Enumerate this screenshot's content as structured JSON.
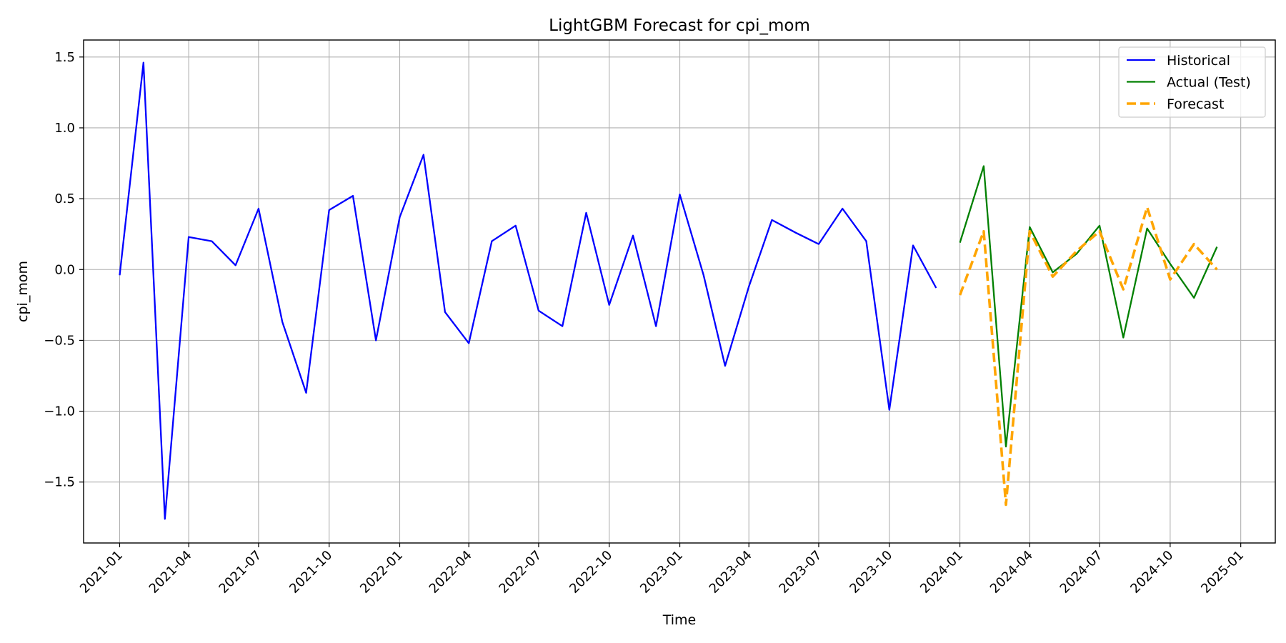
{
  "chart_data": {
    "type": "line",
    "title": "LightGBM Forecast for cpi_mom",
    "xlabel": "Time",
    "ylabel": "cpi_mom",
    "grid": true,
    "legend_position": "top-right",
    "xlim": [
      "2020-11-15",
      "2025-02-15"
    ],
    "ylim": [
      -1.93,
      1.62
    ],
    "x_ticks": [
      "2021-01",
      "2021-04",
      "2021-07",
      "2021-10",
      "2022-01",
      "2022-04",
      "2022-07",
      "2022-10",
      "2023-01",
      "2023-04",
      "2023-07",
      "2023-10",
      "2024-01",
      "2024-04",
      "2024-07",
      "2024-10",
      "2025-01"
    ],
    "y_ticks": [
      1.5,
      1.0,
      0.5,
      0.0,
      -0.5,
      -1.0,
      -1.5
    ],
    "y_tick_labels": [
      "1.5",
      "1.0",
      "0.5",
      "0.0",
      "−0.5",
      "−1.0",
      "−1.5"
    ],
    "series": [
      {
        "name": "Historical",
        "color": "#0000ff",
        "style": "solid",
        "x": [
          "2021-01",
          "2021-02",
          "2021-03",
          "2021-04",
          "2021-05",
          "2021-06",
          "2021-07",
          "2021-08",
          "2021-09",
          "2021-10",
          "2021-11",
          "2021-12",
          "2022-01",
          "2022-02",
          "2022-03",
          "2022-04",
          "2022-05",
          "2022-06",
          "2022-07",
          "2022-08",
          "2022-09",
          "2022-10",
          "2022-11",
          "2022-12",
          "2023-01",
          "2023-02",
          "2023-03",
          "2023-04",
          "2023-05",
          "2023-06",
          "2023-07",
          "2023-08",
          "2023-09",
          "2023-10",
          "2023-11",
          "2023-12"
        ],
        "values": [
          -0.04,
          1.46,
          -1.76,
          0.23,
          0.2,
          0.03,
          0.43,
          -0.37,
          -0.87,
          0.42,
          0.52,
          -0.5,
          0.37,
          0.81,
          -0.3,
          -0.52,
          0.2,
          0.31,
          -0.29,
          -0.4,
          0.4,
          -0.25,
          0.24,
          -0.4,
          0.53,
          -0.04,
          -0.68,
          -0.12,
          0.35,
          0.26,
          0.18,
          0.43,
          0.2,
          -0.99,
          0.17,
          -0.13
        ]
      },
      {
        "name": "Actual (Test)",
        "color": "#008000",
        "style": "solid",
        "x": [
          "2024-01",
          "2024-02",
          "2024-03",
          "2024-04",
          "2024-05",
          "2024-06",
          "2024-07",
          "2024-08",
          "2024-09",
          "2024-10",
          "2024-11",
          "2024-12"
        ],
        "values": [
          0.19,
          0.73,
          -1.25,
          0.3,
          -0.02,
          0.11,
          0.31,
          -0.48,
          0.29,
          0.04,
          -0.2,
          0.16
        ]
      },
      {
        "name": "Forecast",
        "color": "#ffa500",
        "style": "dashed",
        "x": [
          "2024-01",
          "2024-02",
          "2024-03",
          "2024-04",
          "2024-05",
          "2024-06",
          "2024-07",
          "2024-08",
          "2024-09",
          "2024-10",
          "2024-11",
          "2024-12"
        ],
        "values": [
          -0.18,
          0.27,
          -1.66,
          0.27,
          -0.05,
          0.13,
          0.27,
          -0.14,
          0.44,
          -0.07,
          0.18,
          0.0
        ]
      }
    ]
  }
}
